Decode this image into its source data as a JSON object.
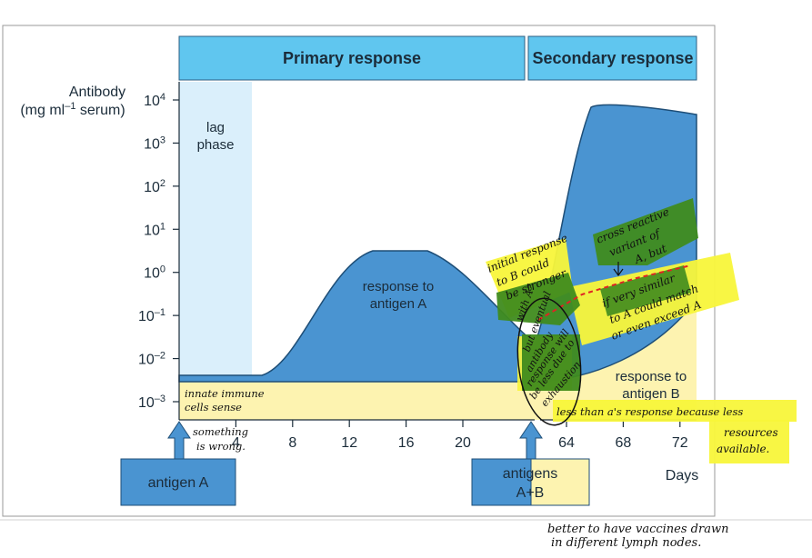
{
  "chart_data": {
    "type": "area",
    "headers": {
      "primary": "Primary response",
      "secondary": "Secondary response"
    },
    "ylabel_line1": "Antibody",
    "ylabel_line2_a": "(mg ml",
    "ylabel_line2_exp": "–1",
    "ylabel_line2_b": " serum)",
    "y_ticks": [
      {
        "base": "10",
        "exp": "4"
      },
      {
        "base": "10",
        "exp": "3"
      },
      {
        "base": "10",
        "exp": "2"
      },
      {
        "base": "10",
        "exp": "1"
      },
      {
        "base": "10",
        "exp": "0"
      },
      {
        "base": "10",
        "exp": "–1"
      },
      {
        "base": "10",
        "exp": "–2"
      },
      {
        "base": "10",
        "exp": "–3"
      }
    ],
    "ylim_log10": [
      -3,
      4
    ],
    "x_ticks_primary": [
      "4",
      "8",
      "12",
      "16",
      "20"
    ],
    "x_ticks_secondary": [
      "64",
      "68",
      "72"
    ],
    "xlabel": "Days",
    "lag_phase_line1": "lag",
    "lag_phase_line2": "phase",
    "series": [
      {
        "name": "response to antigen A",
        "label_line1": "response to",
        "label_line2": "antigen A",
        "color": "#4a94d1",
        "points": [
          [
            0,
            -2.6
          ],
          [
            4,
            -2.6
          ],
          [
            14,
            0.5
          ],
          [
            18,
            0.5
          ],
          [
            24,
            -1.5
          ],
          [
            62,
            -2.2
          ],
          [
            64,
            3.8
          ],
          [
            72,
            3.6
          ]
        ]
      },
      {
        "name": "response to antigen B",
        "label_line1": "response to",
        "label_line2": "antigen B",
        "color": "#fdf3b0",
        "points": [
          [
            0,
            -2.6
          ],
          [
            62,
            -2.6
          ],
          [
            72,
            0.3
          ]
        ]
      }
    ],
    "markers": [
      {
        "label": "antigen A"
      },
      {
        "label_line1": "antigens",
        "label_line2": "A+B"
      }
    ]
  },
  "annotations": {
    "a1_1": "initial response",
    "a1_2": "to B could",
    "a1_3": "be stronger",
    "a2_1": "cross reactive",
    "a2_2": "variant of",
    "a2_3": "A, but",
    "a3_1": "if very similar",
    "a3_2": "to A could match",
    "a3_3": "or even exceed A",
    "a4_1": "with A?",
    "a4_2": "but eventual",
    "a4_3": "antibody",
    "a4_4": "response will",
    "a4_5": "be less due to",
    "a4_6": "exhaustion",
    "a5": "less than a's response because less",
    "a6_1": "resources",
    "a6_2": "available.",
    "a7_1": "innate immune",
    "a7_2": "cells sense",
    "a8_1": "something",
    "a8_2": "is wrong.",
    "a9_1": "better to have vaccines drawn",
    "a9_2": "in different lymph nodes."
  },
  "colors": {
    "header": "#60c6ef",
    "primary_area": "#4a94d1",
    "baseline_band": "#fdf3b0",
    "lag_phase": "#daeffb",
    "highlighter_yellow": "#f8f53a",
    "highlighter_green": "#3f8b1e"
  }
}
